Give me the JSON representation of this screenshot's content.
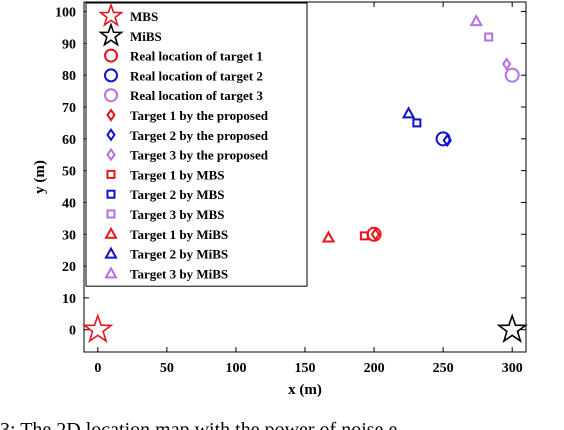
{
  "chart_data": {
    "type": "scatter",
    "title": "",
    "xlabel": "x (m)",
    "ylabel": "y (m)",
    "xlim": [
      -10,
      310
    ],
    "ylim": [
      -7,
      103
    ],
    "xticks": [
      0,
      50,
      100,
      150,
      200,
      250,
      300
    ],
    "yticks": [
      0,
      10,
      20,
      30,
      40,
      50,
      60,
      70,
      80,
      90,
      100
    ],
    "grid": false,
    "legend_position": "top-left",
    "series": [
      {
        "name": "MBS",
        "marker": "star",
        "color": "#e8141b",
        "points": [
          [
            0,
            0
          ]
        ]
      },
      {
        "name": "MiBS",
        "marker": "star",
        "color": "#000000",
        "points": [
          [
            300,
            0
          ]
        ]
      },
      {
        "name": "Real location of target 1",
        "marker": "circle",
        "color": "#e8141b",
        "points": [
          [
            200,
            30
          ]
        ]
      },
      {
        "name": "Real location of target 2",
        "marker": "circle",
        "color": "#1010d0",
        "points": [
          [
            250,
            60
          ]
        ]
      },
      {
        "name": "Real location of target 3",
        "marker": "circle",
        "color": "#b56fe3",
        "points": [
          [
            300,
            80
          ]
        ]
      },
      {
        "name": "Target 1 by the proposed",
        "marker": "diamond",
        "color": "#e8141b",
        "points": [
          [
            201,
            30
          ]
        ]
      },
      {
        "name": "Target 2 by the proposed",
        "marker": "diamond",
        "color": "#1010d0",
        "points": [
          [
            253,
            59.5
          ]
        ]
      },
      {
        "name": "Target 3 by the proposed",
        "marker": "diamond",
        "color": "#b56fe3",
        "points": [
          [
            296,
            83.5
          ]
        ]
      },
      {
        "name": "Target 1 by MBS",
        "marker": "square",
        "color": "#e8141b",
        "points": [
          [
            193,
            29.5
          ]
        ]
      },
      {
        "name": "Target 2 by MBS",
        "marker": "square",
        "color": "#1010d0",
        "points": [
          [
            231,
            65
          ]
        ]
      },
      {
        "name": "Target 3 by MBS",
        "marker": "square",
        "color": "#b56fe3",
        "points": [
          [
            283,
            92
          ]
        ]
      },
      {
        "name": "Target 1 by MiBS",
        "marker": "triangle",
        "color": "#e8141b",
        "points": [
          [
            167,
            29
          ]
        ]
      },
      {
        "name": "Target 2 by MiBS",
        "marker": "triangle",
        "color": "#1010d0",
        "points": [
          [
            225,
            68
          ]
        ]
      },
      {
        "name": "Target 3 by MiBS",
        "marker": "triangle",
        "color": "#b56fe3",
        "points": [
          [
            274,
            97
          ]
        ]
      }
    ]
  },
  "caption": "3: The 2D location map with the power of noise e"
}
